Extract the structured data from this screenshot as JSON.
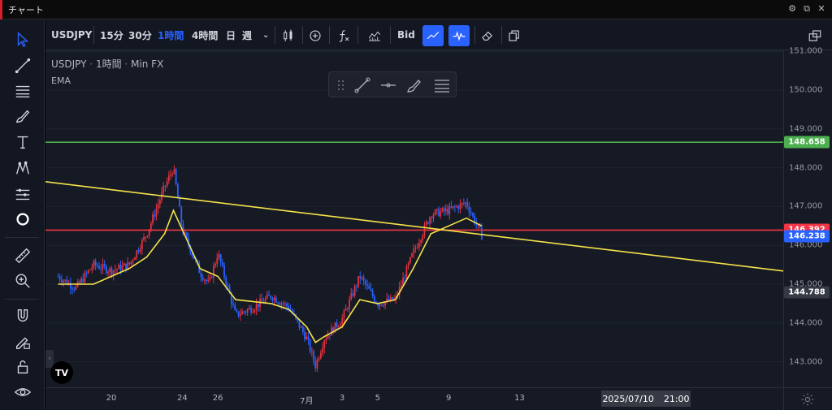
{
  "window": {
    "title": "チャート"
  },
  "toolbar": {
    "symbol": "USDJPY",
    "intervals": [
      "15分",
      "30分",
      "1時間",
      "4時間",
      "日",
      "週"
    ],
    "active_interval": "1時間",
    "bid_label": "Bid"
  },
  "legend": {
    "symbol": "USDJPY",
    "interval": "1時間",
    "source": "Min FX",
    "indicator": "EMA"
  },
  "logo": {
    "text": "TV"
  },
  "colors": {
    "bg": "#161a25",
    "up": "#e0323f",
    "down": "#2962ff",
    "ema": "#f5e34a",
    "green_line": "#4caf50",
    "red_line": "#f23645",
    "yellow_trend": "#f5e34a",
    "cursor_tag": "#363a45"
  },
  "y_axis": {
    "ticks": [
      "151.000",
      "150.000",
      "149.000",
      "148.000",
      "147.000",
      "146.000",
      "145.000",
      "144.000",
      "143.000"
    ],
    "tags": {
      "green": "148.658",
      "red": "146.392",
      "blue": "146.238",
      "cursor": "144.788"
    }
  },
  "x_axis": {
    "ticks": [
      "20",
      "24",
      "26",
      "7月",
      "3",
      "5",
      "9",
      "13"
    ],
    "cursor_label": "2025/07/10",
    "cursor_time": "21:00"
  },
  "chart_data": {
    "type": "candlestick",
    "symbol": "USDJPY",
    "interval": "1時間",
    "ylim": [
      142.7,
      151.2
    ],
    "horizontal_lines": [
      {
        "price": 148.658,
        "color": "green"
      },
      {
        "price": 146.392,
        "color": "red"
      }
    ],
    "trend_line": {
      "from": {
        "date": "2025-06-17",
        "price": 147.6
      },
      "to": {
        "date": "2025-07-15",
        "price": 146.05
      }
    },
    "last_price": 146.238,
    "cursor_price": 144.788,
    "path": [
      [
        "2025-06-17 00:00",
        145.2
      ],
      [
        "2025-06-18 00:00",
        144.9
      ],
      [
        "2025-06-19 00:00",
        145.5
      ],
      [
        "2025-06-20 00:00",
        145.35
      ],
      [
        "2025-06-21 00:00",
        145.5
      ],
      [
        "2025-06-22 00:00",
        146.3
      ],
      [
        "2025-06-23 00:00",
        147.5
      ],
      [
        "2025-06-23 12:00",
        148.0
      ],
      [
        "2025-06-24 00:00",
        146.4
      ],
      [
        "2025-06-25 00:00",
        145.3
      ],
      [
        "2025-06-25 12:00",
        145.0
      ],
      [
        "2025-06-26 00:00",
        145.8
      ],
      [
        "2025-06-27 00:00",
        144.2
      ],
      [
        "2025-06-28 00:00",
        144.4
      ],
      [
        "2025-06-29 00:00",
        144.7
      ],
      [
        "2025-06-30 00:00",
        144.4
      ],
      [
        "2025-07-01 00:00",
        143.6
      ],
      [
        "2025-07-01 12:00",
        142.9
      ],
      [
        "2025-07-02 00:00",
        143.6
      ],
      [
        "2025-07-03 00:00",
        144.1
      ],
      [
        "2025-07-04 00:00",
        145.2
      ],
      [
        "2025-07-05 00:00",
        144.5
      ],
      [
        "2025-07-06 00:00",
        144.6
      ],
      [
        "2025-07-07 00:00",
        145.8
      ],
      [
        "2025-07-08 00:00",
        146.8
      ],
      [
        "2025-07-09 00:00",
        146.9
      ],
      [
        "2025-07-10 00:00",
        147.1
      ],
      [
        "2025-07-10 12:00",
        146.6
      ],
      [
        "2025-07-10 21:00",
        146.24
      ]
    ],
    "ema_path": [
      [
        "2025-06-17 00:00",
        145.0
      ],
      [
        "2025-06-19 00:00",
        145.0
      ],
      [
        "2025-06-21 00:00",
        145.4
      ],
      [
        "2025-06-22 00:00",
        145.7
      ],
      [
        "2025-06-23 00:00",
        146.3
      ],
      [
        "2025-06-23 12:00",
        146.9
      ],
      [
        "2025-06-24 00:00",
        146.4
      ],
      [
        "2025-06-25 00:00",
        145.4
      ],
      [
        "2025-06-26 00:00",
        145.2
      ],
      [
        "2025-06-27 00:00",
        144.6
      ],
      [
        "2025-06-29 00:00",
        144.5
      ],
      [
        "2025-06-30 00:00",
        144.35
      ],
      [
        "2025-07-01 00:00",
        143.9
      ],
      [
        "2025-07-01 12:00",
        143.5
      ],
      [
        "2025-07-02 00:00",
        143.65
      ],
      [
        "2025-07-03 00:00",
        143.9
      ],
      [
        "2025-07-04 00:00",
        144.6
      ],
      [
        "2025-07-05 00:00",
        144.5
      ],
      [
        "2025-07-06 00:00",
        144.6
      ],
      [
        "2025-07-07 00:00",
        145.4
      ],
      [
        "2025-07-08 00:00",
        146.3
      ],
      [
        "2025-07-09 00:00",
        146.5
      ],
      [
        "2025-07-10 00:00",
        146.7
      ],
      [
        "2025-07-10 21:00",
        146.5
      ]
    ]
  }
}
